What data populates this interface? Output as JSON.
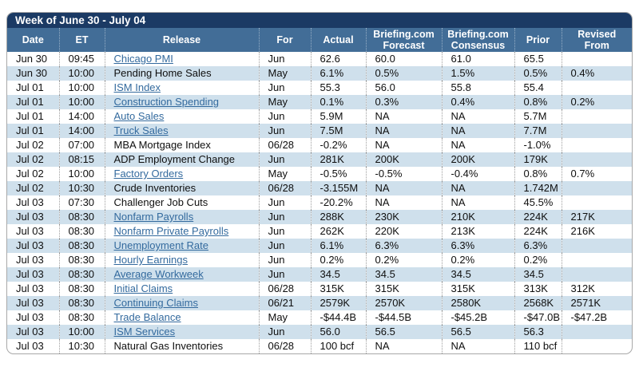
{
  "title": "Week of June 30 - July 04",
  "colors": {
    "title_bar": "#1b3a64",
    "header_bar": "#426d97",
    "row_stripe": "#cfe0ec",
    "link": "#336a9e"
  },
  "table": {
    "columns": [
      {
        "key": "date",
        "label": "Date"
      },
      {
        "key": "et",
        "label": "ET"
      },
      {
        "key": "release",
        "label": "Release"
      },
      {
        "key": "for",
        "label": "For"
      },
      {
        "key": "actual",
        "label": "Actual"
      },
      {
        "key": "forecast",
        "label": "Briefing.com\nForecast"
      },
      {
        "key": "consensus",
        "label": "Briefing.com\nConsensus"
      },
      {
        "key": "prior",
        "label": "Prior"
      },
      {
        "key": "revised",
        "label": "Revised\nFrom"
      }
    ],
    "rows": [
      {
        "date": "Jun 30",
        "et": "09:45",
        "release": "Chicago PMI",
        "link": true,
        "for": "Jun",
        "actual": "62.6",
        "forecast": "60.0",
        "consensus": "61.0",
        "prior": "65.5",
        "revised": ""
      },
      {
        "date": "Jun 30",
        "et": "10:00",
        "release": "Pending Home Sales",
        "link": false,
        "for": "May",
        "actual": "6.1%",
        "forecast": "0.5%",
        "consensus": "1.5%",
        "prior": "0.5%",
        "revised": "0.4%"
      },
      {
        "date": "Jul 01",
        "et": "10:00",
        "release": "ISM Index",
        "link": true,
        "for": "Jun",
        "actual": "55.3",
        "forecast": "56.0",
        "consensus": "55.8",
        "prior": "55.4",
        "revised": ""
      },
      {
        "date": "Jul 01",
        "et": "10:00",
        "release": "Construction Spending",
        "link": true,
        "for": "May",
        "actual": "0.1%",
        "forecast": "0.3%",
        "consensus": "0.4%",
        "prior": "0.8%",
        "revised": "0.2%"
      },
      {
        "date": "Jul 01",
        "et": "14:00",
        "release": "Auto Sales",
        "link": true,
        "for": "Jun",
        "actual": "5.9M",
        "forecast": "NA",
        "consensus": "NA",
        "prior": "5.7M",
        "revised": ""
      },
      {
        "date": "Jul 01",
        "et": "14:00",
        "release": "Truck Sales",
        "link": true,
        "for": "Jun",
        "actual": "7.5M",
        "forecast": "NA",
        "consensus": "NA",
        "prior": "7.7M",
        "revised": ""
      },
      {
        "date": "Jul 02",
        "et": "07:00",
        "release": "MBA Mortgage Index",
        "link": false,
        "for": "06/28",
        "actual": "-0.2%",
        "forecast": "NA",
        "consensus": "NA",
        "prior": "-1.0%",
        "revised": ""
      },
      {
        "date": "Jul 02",
        "et": "08:15",
        "release": "ADP Employment Change",
        "link": false,
        "for": "Jun",
        "actual": "281K",
        "forecast": "200K",
        "consensus": "200K",
        "prior": "179K",
        "revised": ""
      },
      {
        "date": "Jul 02",
        "et": "10:00",
        "release": "Factory Orders",
        "link": true,
        "for": "May",
        "actual": "-0.5%",
        "forecast": "-0.5%",
        "consensus": "-0.4%",
        "prior": "0.8%",
        "revised": "0.7%"
      },
      {
        "date": "Jul 02",
        "et": "10:30",
        "release": "Crude Inventories",
        "link": false,
        "for": "06/28",
        "actual": "-3.155M",
        "forecast": "NA",
        "consensus": "NA",
        "prior": "1.742M",
        "revised": ""
      },
      {
        "date": "Jul 03",
        "et": "07:30",
        "release": "Challenger Job Cuts",
        "link": false,
        "for": "Jun",
        "actual": "-20.2%",
        "forecast": "NA",
        "consensus": "NA",
        "prior": "45.5%",
        "revised": ""
      },
      {
        "date": "Jul 03",
        "et": "08:30",
        "release": "Nonfarm Payrolls",
        "link": true,
        "for": "Jun",
        "actual": "288K",
        "forecast": "230K",
        "consensus": "210K",
        "prior": "224K",
        "revised": "217K"
      },
      {
        "date": "Jul 03",
        "et": "08:30",
        "release": "Nonfarm Private Payrolls",
        "link": true,
        "for": "Jun",
        "actual": "262K",
        "forecast": "220K",
        "consensus": "213K",
        "prior": "224K",
        "revised": "216K"
      },
      {
        "date": "Jul 03",
        "et": "08:30",
        "release": "Unemployment Rate",
        "link": true,
        "for": "Jun",
        "actual": "6.1%",
        "forecast": "6.3%",
        "consensus": "6.3%",
        "prior": "6.3%",
        "revised": ""
      },
      {
        "date": "Jul 03",
        "et": "08:30",
        "release": "Hourly Earnings",
        "link": true,
        "for": "Jun",
        "actual": "0.2%",
        "forecast": "0.2%",
        "consensus": "0.2%",
        "prior": "0.2%",
        "revised": ""
      },
      {
        "date": "Jul 03",
        "et": "08:30",
        "release": "Average Workweek",
        "link": true,
        "for": "Jun",
        "actual": "34.5",
        "forecast": "34.5",
        "consensus": "34.5",
        "prior": "34.5",
        "revised": ""
      },
      {
        "date": "Jul 03",
        "et": "08:30",
        "release": "Initial Claims",
        "link": true,
        "for": "06/28",
        "actual": "315K",
        "forecast": "315K",
        "consensus": "315K",
        "prior": "313K",
        "revised": "312K"
      },
      {
        "date": "Jul 03",
        "et": "08:30",
        "release": "Continuing Claims",
        "link": true,
        "for": "06/21",
        "actual": "2579K",
        "forecast": "2570K",
        "consensus": "2580K",
        "prior": "2568K",
        "revised": "2571K"
      },
      {
        "date": "Jul 03",
        "et": "08:30",
        "release": "Trade Balance",
        "link": true,
        "for": "May",
        "actual": "-$44.4B",
        "forecast": "-$44.5B",
        "consensus": "-$45.2B",
        "prior": "-$47.0B",
        "revised": "-$47.2B"
      },
      {
        "date": "Jul 03",
        "et": "10:00",
        "release": "ISM Services",
        "link": true,
        "for": "Jun",
        "actual": "56.0",
        "forecast": "56.5",
        "consensus": "56.5",
        "prior": "56.3",
        "revised": ""
      },
      {
        "date": "Jul 03",
        "et": "10:30",
        "release": "Natural Gas Inventories",
        "link": false,
        "for": "06/28",
        "actual": "100 bcf",
        "forecast": "NA",
        "consensus": "NA",
        "prior": "110 bcf",
        "revised": ""
      }
    ]
  }
}
